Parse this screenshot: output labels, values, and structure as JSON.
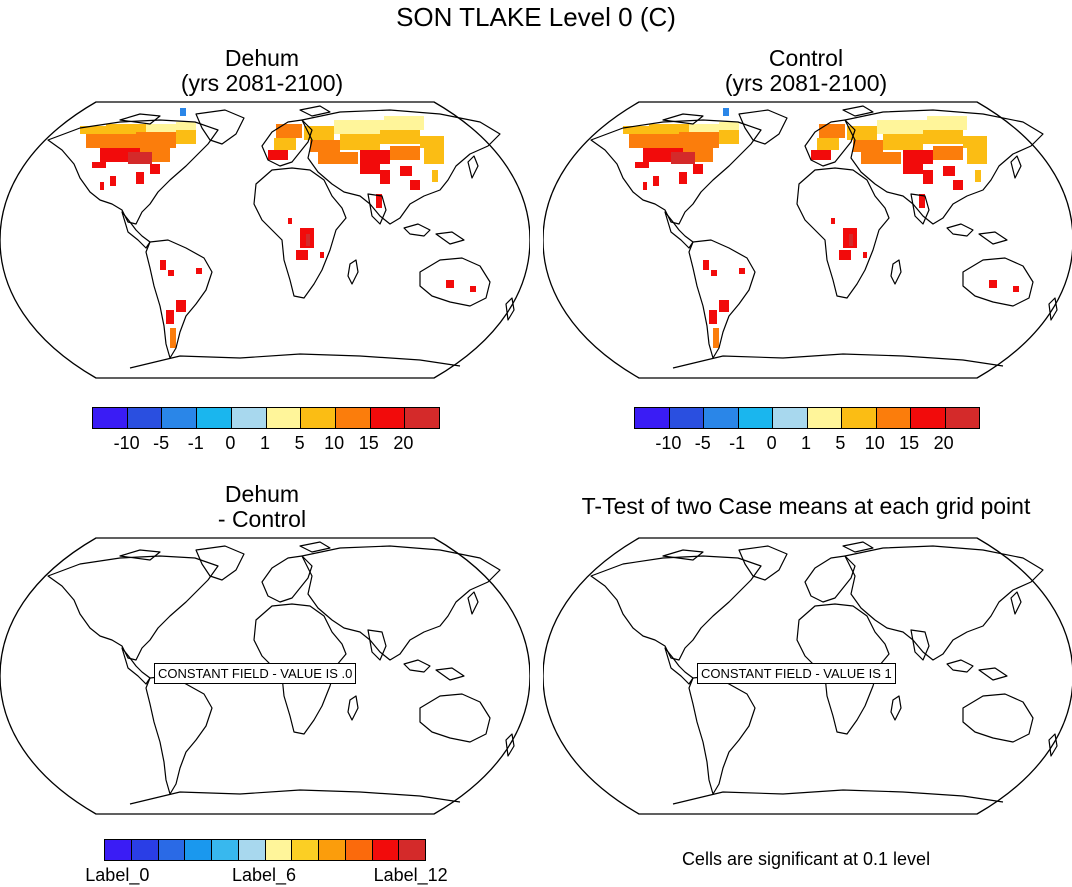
{
  "figure": {
    "title": "SON TLAKE Level 0 (C)",
    "footnote": "Cells are significant at 0.1 level"
  },
  "panels": [
    {
      "title_line1": "Dehum",
      "title_line2": "(yrs 2081-2100)",
      "has_field": true,
      "constant_label": ""
    },
    {
      "title_line1": "Control",
      "title_line2": "(yrs 2081-2100)",
      "has_field": true,
      "constant_label": ""
    },
    {
      "title_line1": "Dehum",
      "title_line2": "- Control",
      "has_field": false,
      "constant_label": "CONSTANT FIELD - VALUE IS .0"
    },
    {
      "title_line1": "T-Test of two Case means at each grid point",
      "title_line2": "",
      "has_field": false,
      "constant_label": "CONSTANT FIELD - VALUE IS 1"
    }
  ],
  "colorbar_top": {
    "colors": [
      "#3a1cf5",
      "#2a4fe0",
      "#2a86e8",
      "#1ab6ee",
      "#a8d8ee",
      "#fff59a",
      "#fbbd14",
      "#fb7d0c",
      "#f20b0b",
      "#d42a2a"
    ],
    "tick_labels": [
      "-10",
      "-5",
      "-1",
      "0",
      "1",
      "5",
      "10",
      "15",
      "20"
    ]
  },
  "colorbar_bottom": {
    "colors": [
      "#3a1cf5",
      "#2a3ee6",
      "#2a6ae6",
      "#1a98ee",
      "#38b8ee",
      "#a8d8ee",
      "#fff59a",
      "#fbcf24",
      "#fb9d0c",
      "#fb6a0c",
      "#f20b0b",
      "#d42a2a"
    ],
    "tick_labels": [
      "Label_0",
      "Label_6",
      "Label_12"
    ]
  }
}
